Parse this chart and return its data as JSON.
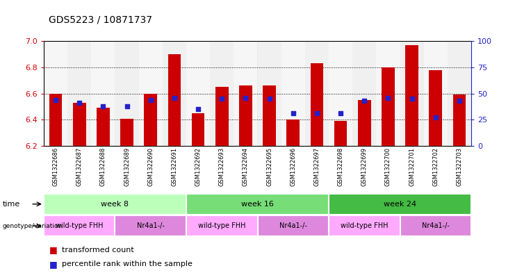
{
  "title": "GDS5223 / 10871737",
  "samples": [
    "GSM1322686",
    "GSM1322687",
    "GSM1322688",
    "GSM1322689",
    "GSM1322690",
    "GSM1322691",
    "GSM1322692",
    "GSM1322693",
    "GSM1322694",
    "GSM1322695",
    "GSM1322696",
    "GSM1322697",
    "GSM1322698",
    "GSM1322699",
    "GSM1322700",
    "GSM1322701",
    "GSM1322702",
    "GSM1322703"
  ],
  "transformed_count": [
    6.6,
    6.53,
    6.49,
    6.41,
    6.6,
    6.9,
    6.45,
    6.65,
    6.66,
    6.66,
    6.4,
    6.83,
    6.39,
    6.55,
    6.8,
    6.97,
    6.78,
    6.59
  ],
  "percentile_rank": [
    44,
    41,
    38,
    38,
    44,
    46,
    35,
    45,
    46,
    45,
    31,
    31,
    31,
    43,
    46,
    45,
    27,
    43
  ],
  "ymin": 6.2,
  "ymax": 7.0,
  "yticks_left": [
    6.2,
    6.4,
    6.6,
    6.8,
    7.0
  ],
  "yticks_right": [
    0,
    25,
    50,
    75,
    100
  ],
  "bar_color": "#cc0000",
  "dot_color": "#2222cc",
  "time_colors": [
    "#bbffbb",
    "#77dd77",
    "#44bb44"
  ],
  "time_groups": [
    {
      "label": "week 8",
      "start": 0,
      "end": 6
    },
    {
      "label": "week 16",
      "start": 6,
      "end": 12
    },
    {
      "label": "week 24",
      "start": 12,
      "end": 18
    }
  ],
  "geno_colors": [
    "#ffaaff",
    "#dd88dd"
  ],
  "genotype_groups": [
    {
      "label": "wild-type FHH",
      "start": 0,
      "end": 3
    },
    {
      "label": "Nr4a1-/-",
      "start": 3,
      "end": 6
    },
    {
      "label": "wild-type FHH",
      "start": 6,
      "end": 9
    },
    {
      "label": "Nr4a1-/-",
      "start": 9,
      "end": 12
    },
    {
      "label": "wild-type FHH",
      "start": 12,
      "end": 15
    },
    {
      "label": "Nr4a1-/-",
      "start": 15,
      "end": 18
    }
  ],
  "legend_red": "transformed count",
  "legend_blue": "percentile rank within the sample",
  "bar_width": 0.55,
  "col_bg_even": "#e8e8e8",
  "col_bg_odd": "#d4d4d4"
}
